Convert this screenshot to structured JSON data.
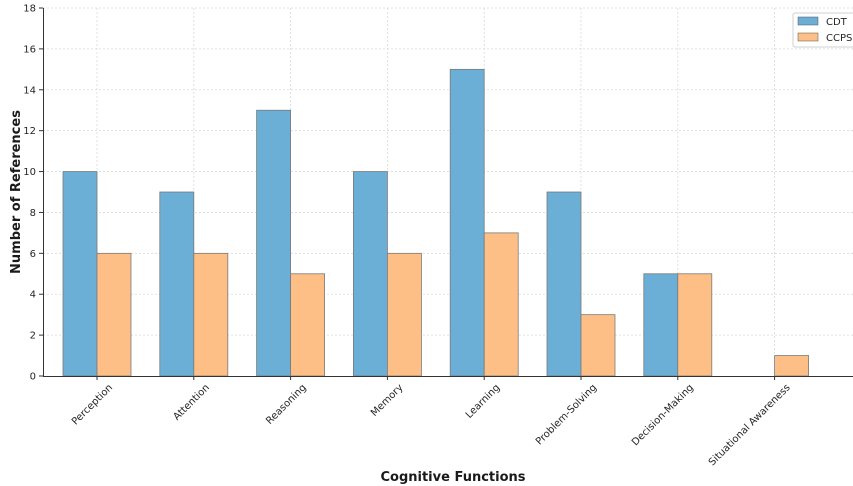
{
  "chart_data": {
    "type": "bar",
    "categories": [
      "Perception",
      "Attention",
      "Reasoning",
      "Memory",
      "Learning",
      "Problem-Solving",
      "Decision-Making",
      "Situational Awareness"
    ],
    "series": [
      {
        "name": "CDT",
        "values": [
          10,
          9,
          13,
          10,
          15,
          9,
          5,
          0
        ],
        "color": "#6baed6"
      },
      {
        "name": "CCPS",
        "values": [
          6,
          6,
          5,
          6,
          7,
          3,
          5,
          1
        ],
        "color": "#fdbf85"
      }
    ],
    "xlabel": "Cognitive Functions",
    "ylabel": "Number of References",
    "ylim": [
      0,
      18
    ],
    "yticks": [
      0,
      2,
      4,
      6,
      8,
      10,
      12,
      14,
      16,
      18
    ],
    "grid": true,
    "legend": "top-right"
  }
}
